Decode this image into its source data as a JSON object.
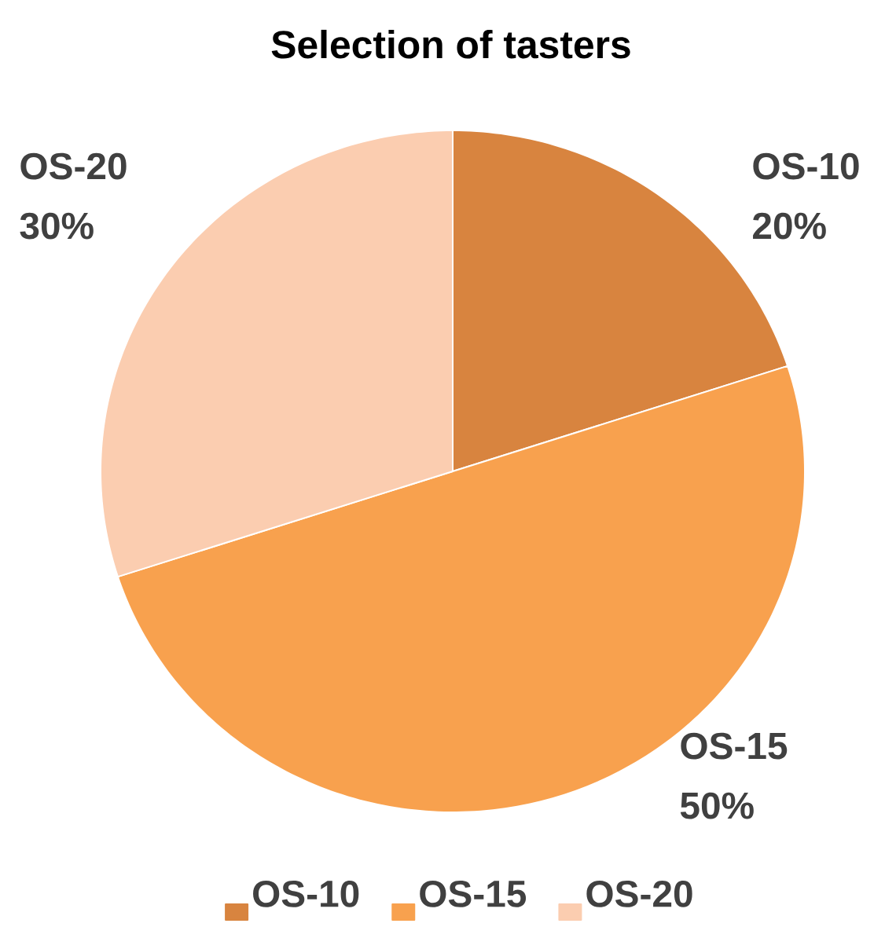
{
  "chart_data": {
    "type": "pie",
    "title": "Selection of tasters",
    "categories": [
      "OS-10",
      "OS-15",
      "OS-20"
    ],
    "values": [
      20,
      50,
      30
    ],
    "colors": [
      "#d8843f",
      "#f8a14e",
      "#fbcdb0"
    ],
    "value_labels": [
      "20%",
      "50%",
      "30%"
    ],
    "legend": "bottom"
  }
}
